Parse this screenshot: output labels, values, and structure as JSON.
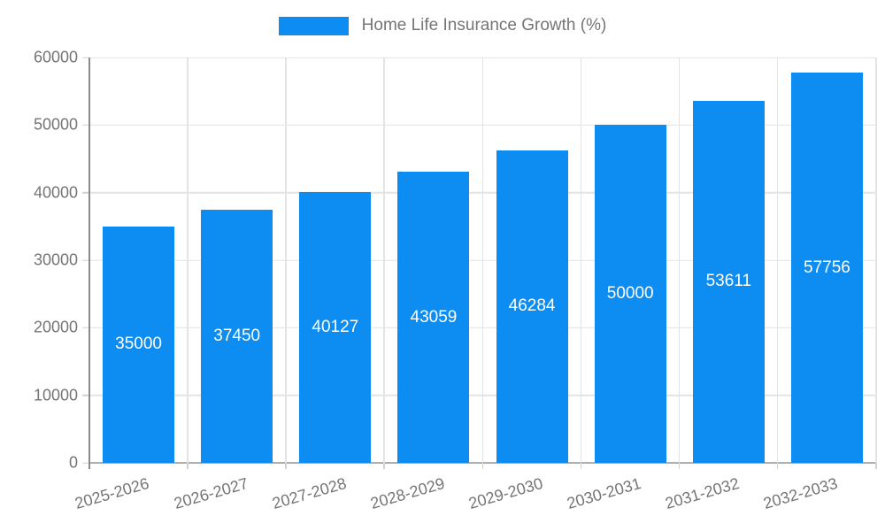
{
  "legend": {
    "label": "Home Life Insurance Growth (%)"
  },
  "chart_data": {
    "type": "bar",
    "title": "Home Life Insurance Growth (%)",
    "categories": [
      "2025-2026",
      "2026-2027",
      "2027-2028",
      "2028-2029",
      "2029-2030",
      "2030-2031",
      "2031-2032",
      "2032-2033"
    ],
    "values": [
      35000,
      37450,
      40127,
      43059,
      46284,
      50000,
      53611,
      57756
    ],
    "bar_labels": [
      "35000",
      "37450",
      "40127",
      "43059",
      "46284",
      "50000",
      "53611",
      "57756"
    ],
    "xlabel": "",
    "ylabel": "",
    "ylim": [
      0,
      60000
    ],
    "yticks": [
      0,
      10000,
      20000,
      30000,
      40000,
      50000,
      60000
    ],
    "grid": true,
    "legend_position": "top",
    "x_label_rotation_deg": -16,
    "colors": {
      "bar": "#0d8cf2",
      "axis_text": "#757575",
      "grid_line": "#e4e4e4",
      "tick_line": "#d2d2d2",
      "y_axis_line": "#8a8a8a",
      "x_axis_line": "#aeaeae",
      "bar_label": "#ffffff",
      "background": "#ffffff"
    }
  }
}
